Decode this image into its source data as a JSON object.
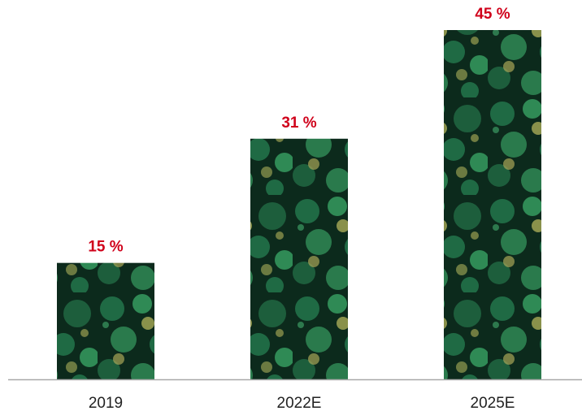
{
  "chart_data": {
    "type": "bar",
    "categories": [
      "2019",
      "2022E",
      "2025E"
    ],
    "values": [
      15,
      31,
      45
    ],
    "value_labels": [
      "15 %",
      "31 %",
      "45 %"
    ],
    "title": "",
    "xlabel": "",
    "ylabel": "",
    "ylim": [
      0,
      45
    ],
    "grid": false,
    "legend": "none",
    "bar_fill": "forest-canopy-photo",
    "colors": {
      "value_label": "#d0021b",
      "tick_label": "#222222",
      "axis": "#a8a8a8",
      "forest_dark": "#0c2a1c",
      "forest_mid": "#1f6a44",
      "forest_light": "#2f8a55",
      "forest_highlight": "#b3b35a"
    }
  }
}
